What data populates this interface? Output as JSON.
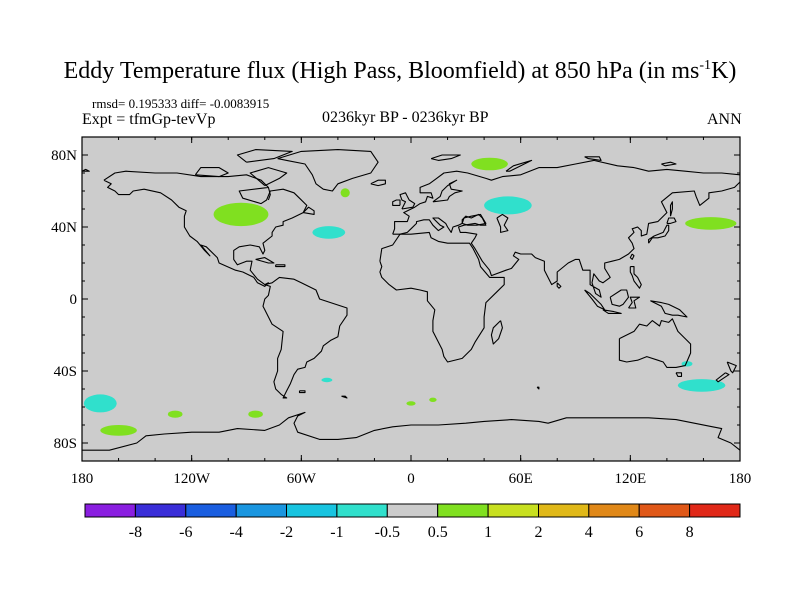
{
  "title": {
    "main": "Eddy Temperature flux (High Pass, Bloomfield) at 850 hPa (in ms",
    "sup": "-1",
    "tail": "K)"
  },
  "stats": "rmsd= 0.195333 diff= -0.0083915",
  "experiment": "Expt = tfmGp-tevVp",
  "period": "0236kyr BP - 0236kyr BP",
  "season": "ANN",
  "axes": {
    "lat_ticks": [
      "80N",
      "40N",
      "0",
      "40S",
      "80S"
    ],
    "lat_values": [
      80,
      40,
      0,
      -40,
      -80
    ],
    "lon_ticks": [
      "180",
      "120W",
      "60W",
      "0",
      "60E",
      "120E",
      "180"
    ],
    "lon_values": [
      -180,
      -120,
      -60,
      0,
      60,
      120,
      180
    ],
    "lon_range": [
      -180,
      180
    ],
    "lat_range": [
      -90,
      90
    ]
  },
  "colorbar": {
    "labels": [
      "-8",
      "-6",
      "-4",
      "-2",
      "-1",
      "-0.5",
      "0.5",
      "1",
      "2",
      "4",
      "6",
      "8"
    ],
    "colors": [
      "#8a1ee0",
      "#3a2ed8",
      "#1a5ee0",
      "#1a96e0",
      "#18c4e0",
      "#30e0cc",
      "#cccccc",
      "#80e020",
      "#c8e020",
      "#e0b818",
      "#e08818",
      "#e05818",
      "#e02818"
    ]
  },
  "regions": [
    {
      "lon": -93,
      "lat": 47,
      "rlon": 15,
      "rlat": 6.5,
      "color": "#80e020"
    },
    {
      "lon": -45,
      "lat": 37,
      "rlon": 9,
      "rlat": 3.5,
      "color": "#30e0cc"
    },
    {
      "lon": -36,
      "lat": 59,
      "rlon": 2.5,
      "rlat": 2.5,
      "color": "#80e020"
    },
    {
      "lon": 43,
      "lat": 75,
      "rlon": 10,
      "rlat": 3.5,
      "color": "#80e020"
    },
    {
      "lon": 53,
      "lat": 52,
      "rlon": 13,
      "rlat": 5,
      "color": "#30e0cc"
    },
    {
      "lon": 164,
      "lat": 42,
      "rlon": 14,
      "rlat": 3.5,
      "color": "#80e020"
    },
    {
      "lon": 159,
      "lat": -48,
      "rlon": 13,
      "rlat": 3.5,
      "color": "#30e0cc"
    },
    {
      "lon": 151,
      "lat": -36,
      "rlon": 3,
      "rlat": 1.5,
      "color": "#30e0cc"
    },
    {
      "lon": -170,
      "lat": -58,
      "rlon": 9,
      "rlat": 5,
      "color": "#30e0cc"
    },
    {
      "lon": -160,
      "lat": -73,
      "rlon": 10,
      "rlat": 3,
      "color": "#80e020"
    },
    {
      "lon": -129,
      "lat": -64,
      "rlon": 4,
      "rlat": 2,
      "color": "#80e020"
    },
    {
      "lon": -85,
      "lat": -64,
      "rlon": 4,
      "rlat": 2,
      "color": "#80e020"
    },
    {
      "lon": -46,
      "lat": -45,
      "rlon": 3,
      "rlat": 1.2,
      "color": "#30e0cc"
    },
    {
      "lon": 12,
      "lat": -56,
      "rlon": 2,
      "rlat": 1.2,
      "color": "#80e020"
    },
    {
      "lon": 0,
      "lat": -58,
      "rlon": 2.5,
      "rlat": 1.2,
      "color": "#80e020"
    }
  ]
}
